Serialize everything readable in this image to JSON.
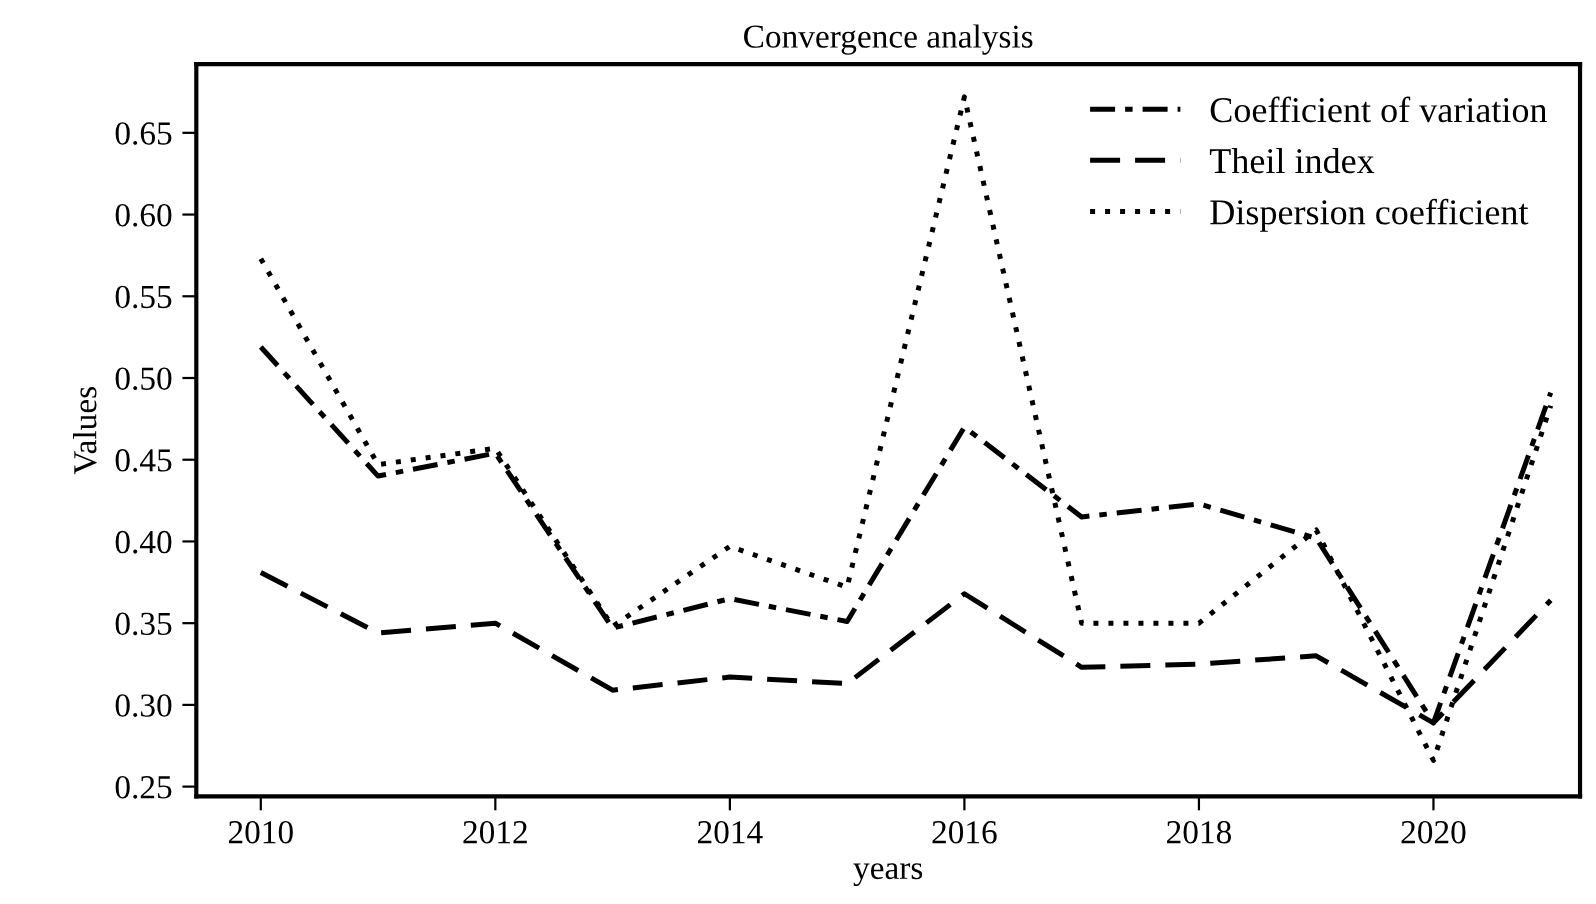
{
  "chart_data": {
    "type": "line",
    "title": "Convergence analysis",
    "xlabel": "years",
    "ylabel": "Values",
    "x": [
      2010,
      2011,
      2012,
      2013,
      2014,
      2015,
      2016,
      2017,
      2018,
      2019,
      2020,
      2021
    ],
    "series": [
      {
        "name": "Coefficient of variation",
        "color": "#000000",
        "line_style": "dashdot",
        "values": [
          0.519,
          0.44,
          0.454,
          0.347,
          0.365,
          0.351,
          0.47,
          0.415,
          0.423,
          0.402,
          0.289,
          0.491
        ]
      },
      {
        "name": "Theil index",
        "color": "#000000",
        "line_style": "dashed",
        "values": [
          0.381,
          0.344,
          0.35,
          0.309,
          0.317,
          0.313,
          0.368,
          0.323,
          0.325,
          0.33,
          0.289,
          0.364
        ]
      },
      {
        "name": "Dispersion coefficient",
        "color": "#000000",
        "line_style": "dotted",
        "values": [
          0.573,
          0.447,
          0.457,
          0.348,
          0.397,
          0.372,
          0.672,
          0.35,
          0.35,
          0.407,
          0.266,
          0.483
        ]
      }
    ],
    "xlim": [
      2009.45,
      2021.25
    ],
    "xticks": [
      2010,
      2012,
      2014,
      2016,
      2018,
      2020
    ],
    "ylim": [
      0.244,
      0.692
    ],
    "yticks": [
      {
        "value": 0.25,
        "label": "0.25"
      },
      {
        "value": 0.3,
        "label": "0.30"
      },
      {
        "value": 0.35,
        "label": "0.35"
      },
      {
        "value": 0.4,
        "label": "0.40"
      },
      {
        "value": 0.45,
        "label": "0.45"
      },
      {
        "value": 0.5,
        "label": "0.50"
      },
      {
        "value": 0.55,
        "label": "0.55"
      },
      {
        "value": 0.6,
        "label": "0.60"
      },
      {
        "value": 0.65,
        "label": "0.65"
      }
    ],
    "grid": false,
    "legend": "top right",
    "marker": "none"
  }
}
